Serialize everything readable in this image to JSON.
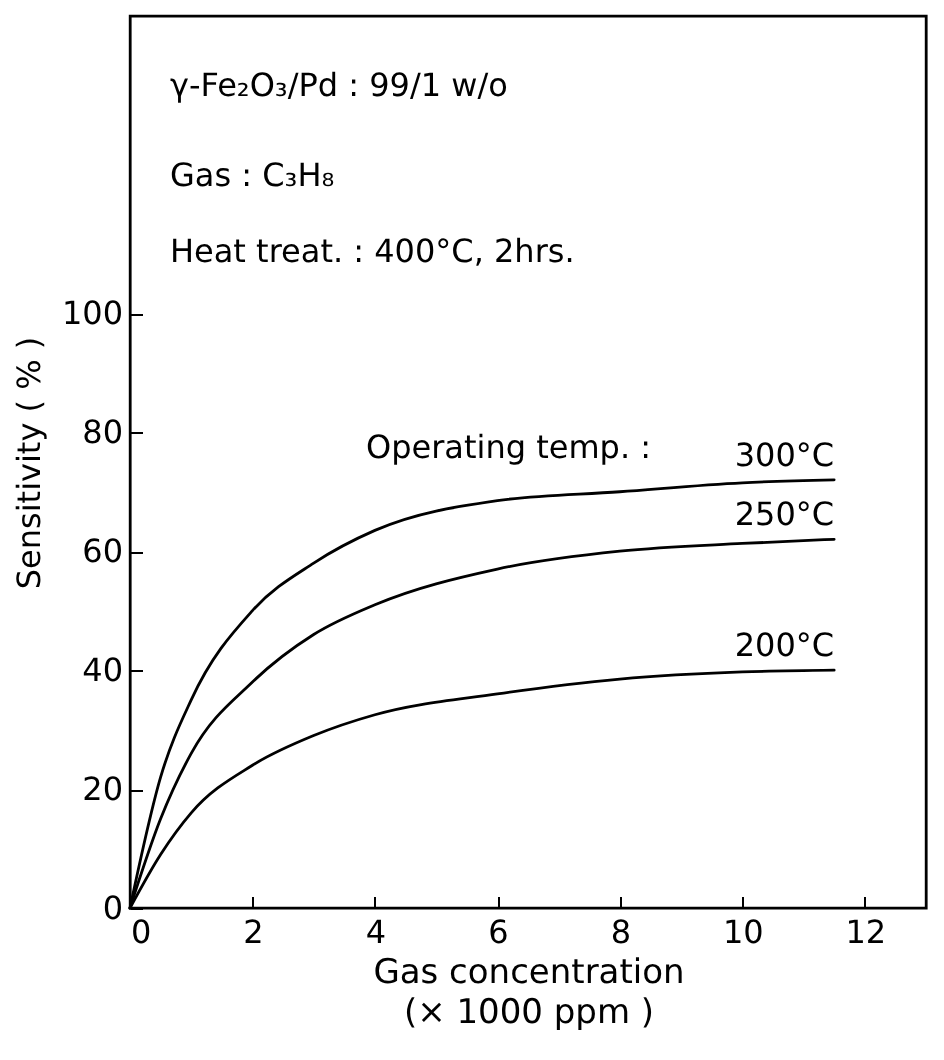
{
  "chart_data": {
    "type": "line",
    "xlabel": "Gas concentration\n(× 1000 ppm )",
    "ylabel": "Sensitivity ( % )",
    "annotations": [
      "γ-Fe₂O₃/Pd : 99/1 w/o",
      "Gas : C₃H₈",
      "Heat treat. : 400°C, 2hrs.",
      "Operating temp. :"
    ],
    "x": [
      0,
      0.5,
      1,
      2,
      3,
      4,
      6,
      8,
      10,
      11.5
    ],
    "series": [
      {
        "name": "300°C",
        "color": "#000000",
        "values": [
          0,
          22,
          35,
          50,
          58,
          63.5,
          68.5,
          70,
          71.5,
          72
        ]
      },
      {
        "name": "250°C",
        "color": "#000000",
        "values": [
          0,
          15,
          26,
          38,
          46,
          51,
          57,
          60,
          61.3,
          62
        ]
      },
      {
        "name": "200°C",
        "color": "#000000",
        "values": [
          0,
          9,
          16,
          24,
          29,
          32.5,
          36,
          38.5,
          39.7,
          40
        ]
      }
    ],
    "xlim": [
      0,
      13
    ],
    "ylim": [
      0,
      150
    ],
    "xticks": [
      0,
      2,
      4,
      6,
      8,
      10,
      12
    ],
    "yticks": [
      0,
      20,
      40,
      60,
      80,
      100
    ],
    "grid": false,
    "marker": "none",
    "line_style": "solid"
  }
}
